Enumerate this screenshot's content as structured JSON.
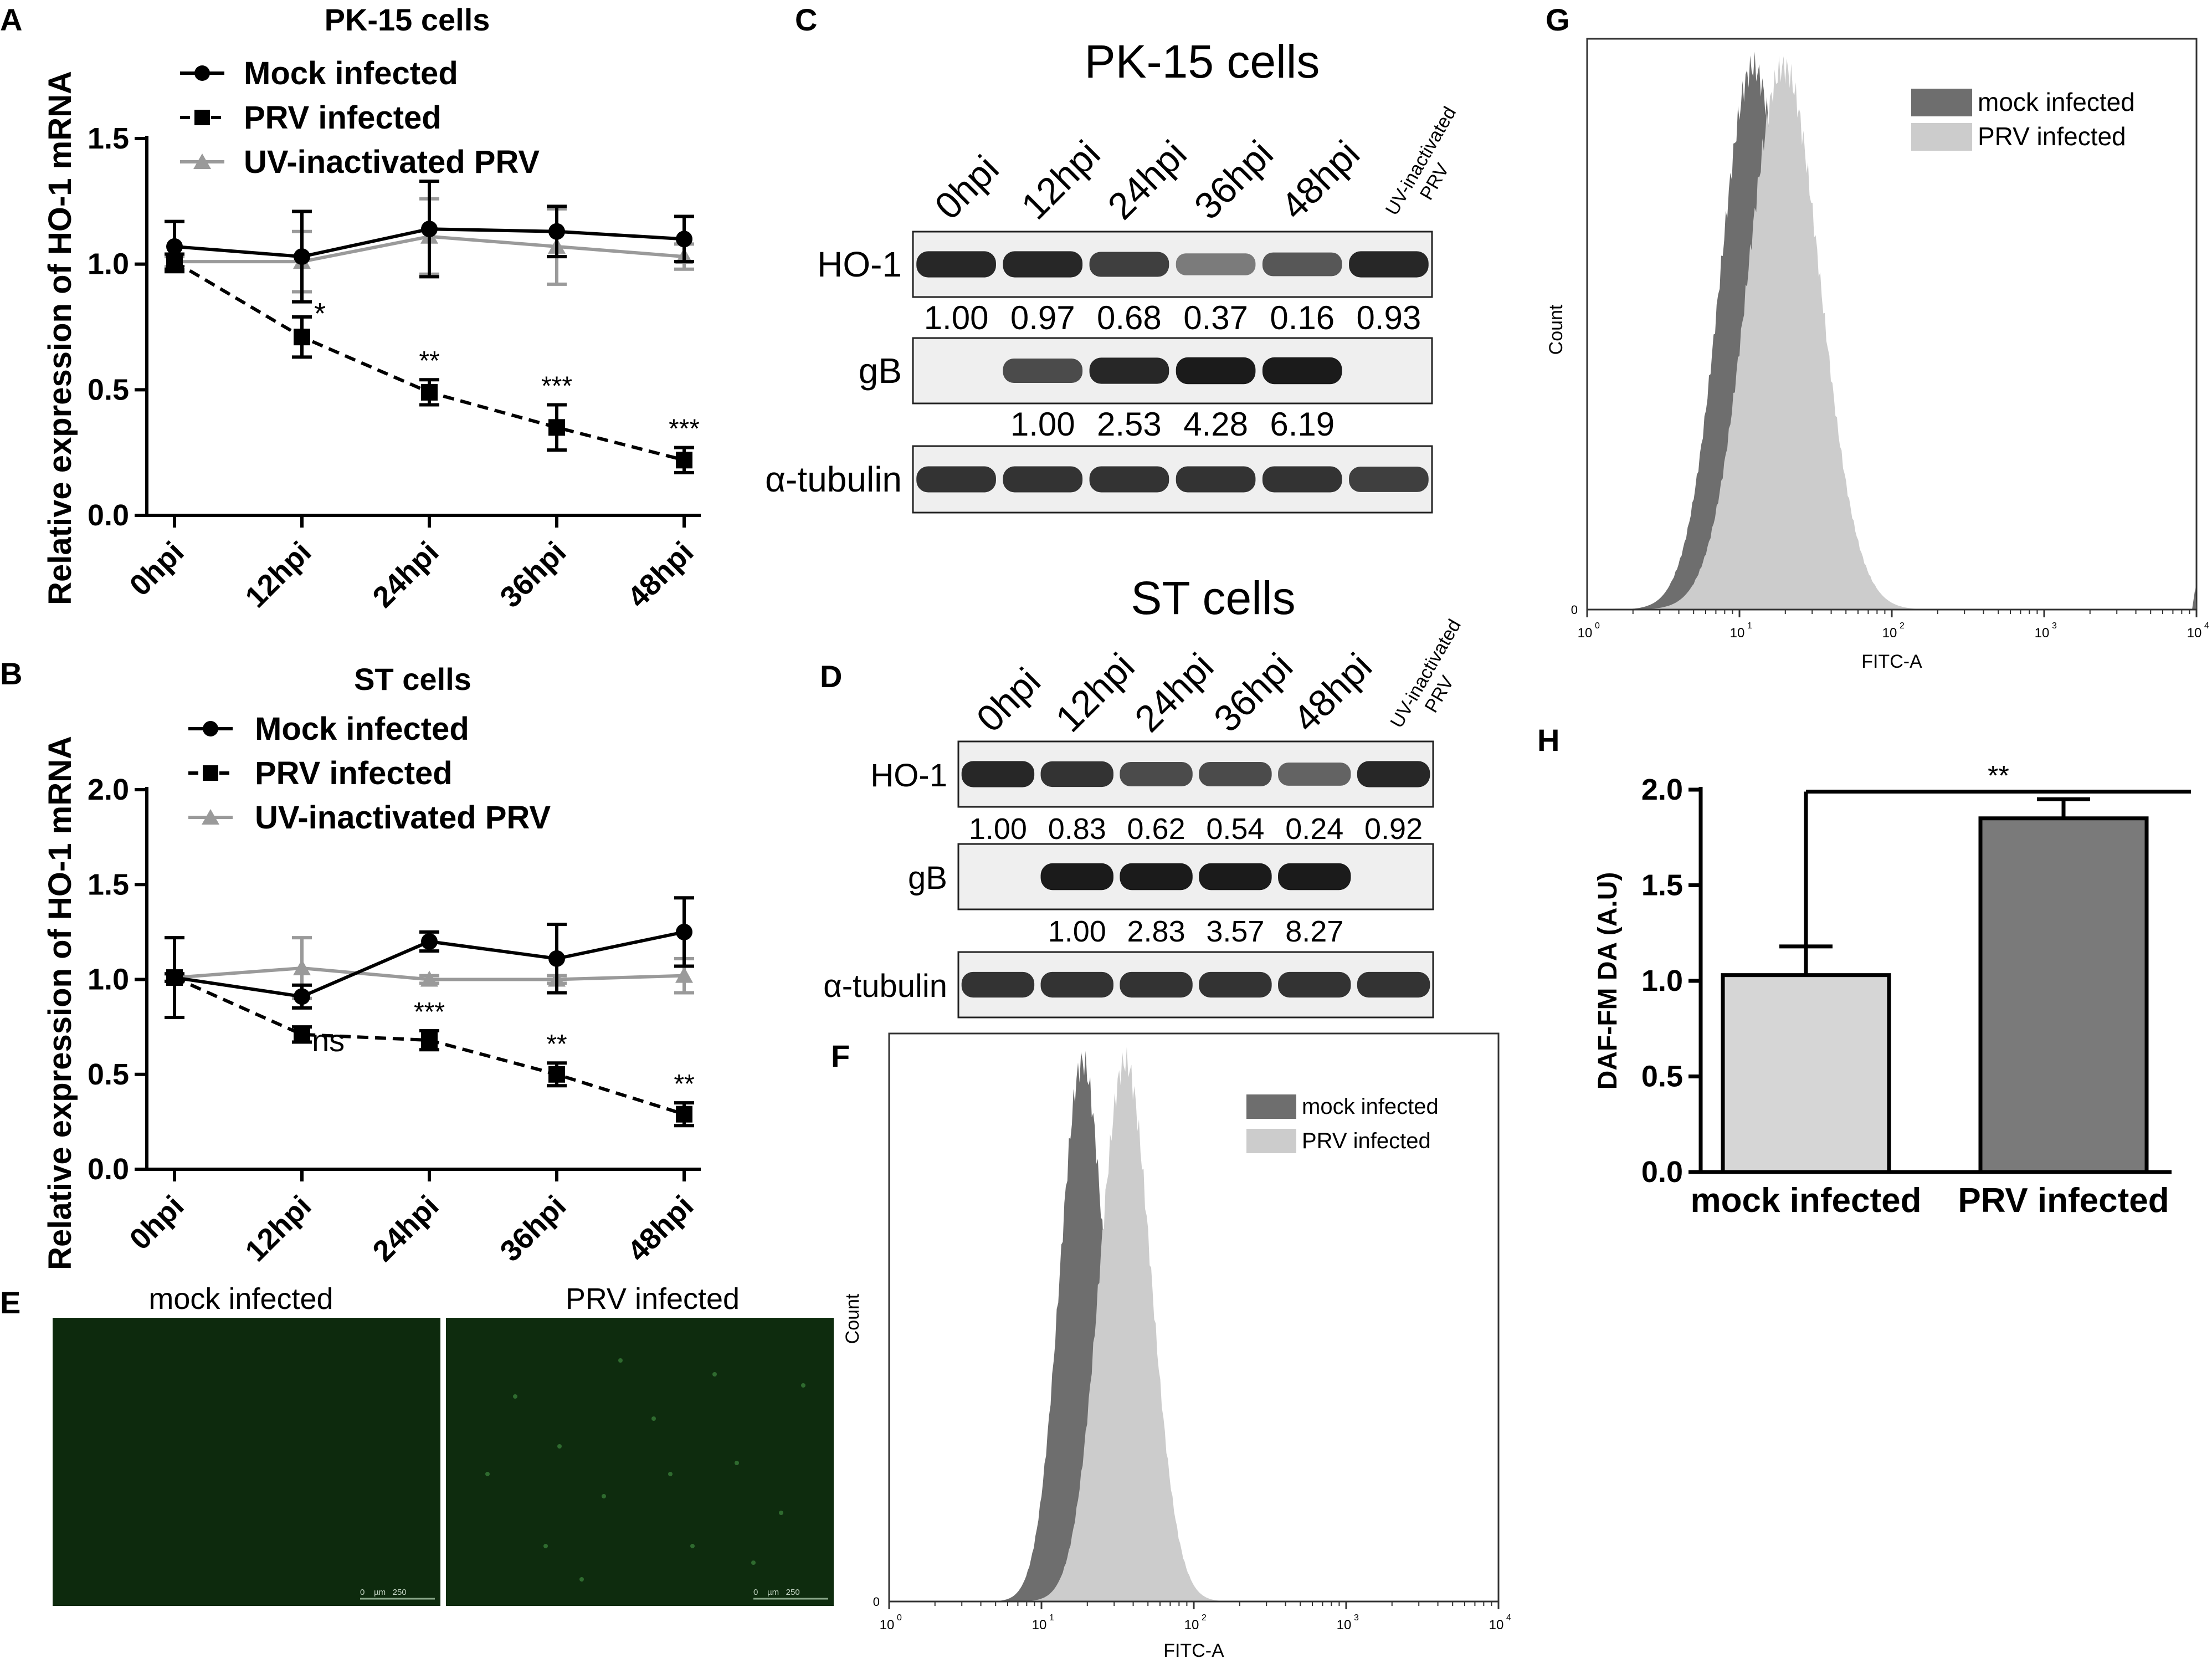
{
  "panel_letters": [
    "A",
    "B",
    "C",
    "D",
    "E",
    "F",
    "G",
    "H"
  ],
  "chart_data": [
    {
      "id": "A",
      "type": "line",
      "title": "PK-15 cells",
      "ylabel": "Relative expression of HO-1 mRNA",
      "xlabel": "",
      "categories": [
        "0hpi",
        "12hpi",
        "24hpi",
        "36hpi",
        "48hpi"
      ],
      "ylim": [
        0,
        1.5
      ],
      "yticks": [
        "0.0",
        "0.5",
        "1.0",
        "1.5"
      ],
      "legend_position": "top-left",
      "series": [
        {
          "name": "Mock infected",
          "style": "solid-black-circle",
          "values": [
            1.07,
            1.03,
            1.14,
            1.13,
            1.1
          ],
          "errors": [
            0.1,
            0.18,
            0.19,
            0.1,
            0.09
          ]
        },
        {
          "name": "PRV infected",
          "style": "dashed-black-square",
          "values": [
            1.01,
            0.71,
            0.49,
            0.35,
            0.22
          ],
          "errors": [
            0.03,
            0.08,
            0.05,
            0.09,
            0.05
          ]
        },
        {
          "name": "UV-inactivated PRV",
          "style": "solid-grey-triangle",
          "values": [
            1.01,
            1.01,
            1.11,
            1.07,
            1.03
          ],
          "errors": [
            0.02,
            0.12,
            0.15,
            0.15,
            0.05
          ]
        }
      ],
      "significance": [
        "",
        "*",
        "**",
        "***",
        "***"
      ]
    },
    {
      "id": "B",
      "type": "line",
      "title": "ST cells",
      "ylabel": "Relative expression of HO-1 mRNA",
      "xlabel": "",
      "categories": [
        "0hpi",
        "12hpi",
        "24hpi",
        "36hpi",
        "48hpi"
      ],
      "ylim": [
        0,
        2.0
      ],
      "yticks": [
        "0.0",
        "0.5",
        "1.0",
        "1.5",
        "2.0"
      ],
      "legend_position": "top-left",
      "series": [
        {
          "name": "Mock infected",
          "style": "solid-black-circle",
          "values": [
            1.01,
            0.91,
            1.2,
            1.11,
            1.25
          ],
          "errors": [
            0.21,
            0.06,
            0.05,
            0.18,
            0.18
          ]
        },
        {
          "name": "PRV infected",
          "style": "dashed-black-square",
          "values": [
            1.01,
            0.71,
            0.68,
            0.5,
            0.29
          ],
          "errors": [
            0.02,
            0.04,
            0.05,
            0.06,
            0.06
          ]
        },
        {
          "name": "UV-inactivated PRV",
          "style": "solid-grey-triangle",
          "values": [
            1.01,
            1.06,
            1.0,
            1.0,
            1.02
          ],
          "errors": [
            0.02,
            0.16,
            0.02,
            0.02,
            0.09
          ]
        }
      ],
      "significance": [
        "",
        "ns",
        "***",
        "**",
        "**"
      ]
    },
    {
      "id": "C",
      "type": "table",
      "title": "PK-15 cells",
      "lanes": [
        "0hpi",
        "12hpi",
        "24hpi",
        "36hpi",
        "48hpi",
        "UV-inactivated PRV"
      ],
      "rows": [
        {
          "label": "HO-1",
          "values": [
            "1.00",
            "0.97",
            "0.68",
            "0.37",
            "0.16",
            "0.93"
          ],
          "intensity": [
            0.9,
            0.9,
            0.8,
            0.55,
            0.7,
            0.9
          ]
        },
        {
          "label": "gB",
          "values": [
            "",
            "1.00",
            "2.53",
            "4.28",
            "6.19",
            ""
          ],
          "intensity": [
            0.0,
            0.75,
            0.9,
            0.95,
            0.95,
            0.0
          ]
        },
        {
          "label": "α-tubulin",
          "values": [],
          "intensity": [
            0.85,
            0.85,
            0.85,
            0.85,
            0.85,
            0.8
          ]
        }
      ]
    },
    {
      "id": "D",
      "type": "table",
      "title": "ST cells",
      "lanes": [
        "0hpi",
        "12hpi",
        "24hpi",
        "36hpi",
        "48hpi",
        "UV-inactivated PRV"
      ],
      "rows": [
        {
          "label": "HO-1",
          "values": [
            "1.00",
            "0.83",
            "0.62",
            "0.54",
            "0.24",
            "0.92"
          ],
          "intensity": [
            0.9,
            0.85,
            0.75,
            0.75,
            0.65,
            0.9
          ]
        },
        {
          "label": "gB",
          "values": [
            "",
            "1.00",
            "2.83",
            "3.57",
            "8.27",
            ""
          ],
          "intensity": [
            0.0,
            0.95,
            0.95,
            0.95,
            0.95,
            0.0
          ]
        },
        {
          "label": "α-tubulin",
          "values": [],
          "intensity": [
            0.85,
            0.85,
            0.85,
            0.85,
            0.85,
            0.85
          ]
        }
      ]
    },
    {
      "id": "E",
      "type": "other",
      "images": [
        {
          "label": "mock infected",
          "scalebar": "0    µm   250"
        },
        {
          "label": "PRV infected",
          "scalebar": "0    µm   250"
        }
      ]
    },
    {
      "id": "F",
      "type": "area",
      "title": "",
      "xlabel": "FITC-A",
      "ylabel": "Count",
      "xscale": "log",
      "xlim_log10": [
        0,
        4
      ],
      "xtick_exponents": [
        "0",
        "1",
        "2",
        "3",
        "4"
      ],
      "ytick": "0",
      "legend_position": "top-right",
      "series": [
        {
          "name": "mock infected",
          "color": "#6e6e6e",
          "log10_mode": 1.27,
          "log10_sd": 0.15
        },
        {
          "name": "PRV infected",
          "color": "#cccccc",
          "log10_mode": 1.55,
          "log10_sd": 0.17
        }
      ]
    },
    {
      "id": "G",
      "type": "area",
      "title": "",
      "xlabel": "FITC-A",
      "ylabel": "Count",
      "xscale": "log",
      "xlim_log10": [
        0,
        4
      ],
      "xtick_exponents": [
        "0",
        "1",
        "2",
        "3",
        "4"
      ],
      "ytick": "0",
      "legend_position": "top-right",
      "series": [
        {
          "name": "mock infected",
          "color": "#6e6e6e",
          "log10_mode": 1.09,
          "log10_sd": 0.22
        },
        {
          "name": "PRV infected",
          "color": "#cccccc",
          "log10_mode": 1.29,
          "log10_sd": 0.24
        }
      ]
    },
    {
      "id": "H",
      "type": "bar",
      "title": "",
      "ylabel": "DAF-FM DA (A.U)",
      "xlabel": "",
      "categories": [
        "mock infected",
        "PRV infected"
      ],
      "values": [
        1.03,
        1.85
      ],
      "errors": [
        0.15,
        0.1
      ],
      "colors": [
        "#d6d6d6",
        "#7a7a7a"
      ],
      "ylim": [
        0,
        2.0
      ],
      "yticks": [
        "0.0",
        "0.5",
        "1.0",
        "1.5",
        "2.0"
      ],
      "significance": "**"
    }
  ]
}
